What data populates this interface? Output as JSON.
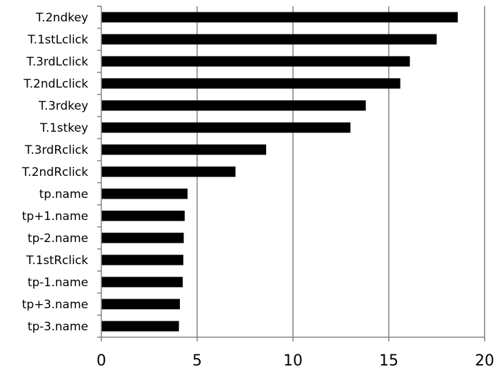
{
  "chart_data": {
    "type": "bar",
    "orientation": "horizontal",
    "categories": [
      "T.2ndkey",
      "T.1stLclick",
      "T.3rdLclick",
      "T.2ndLclick",
      "T.3rdkey",
      "T.1stkey",
      "T.3rdRclick",
      "T.2ndRclick",
      "tp.name",
      "tp+1.name",
      "tp-2.name",
      "T.1stRclick",
      "tp-1.name",
      "tp+3.name",
      "tp-3.name"
    ],
    "values": [
      18.6,
      17.5,
      16.1,
      15.6,
      13.8,
      13.0,
      8.6,
      7.0,
      4.5,
      4.35,
      4.3,
      4.28,
      4.25,
      4.1,
      4.05
    ],
    "xlim": [
      0,
      20
    ],
    "xticks": [
      "0",
      "5",
      "10",
      "15",
      "20"
    ],
    "grid": true,
    "bar_color": "#000000",
    "grid_color": "#808080"
  }
}
